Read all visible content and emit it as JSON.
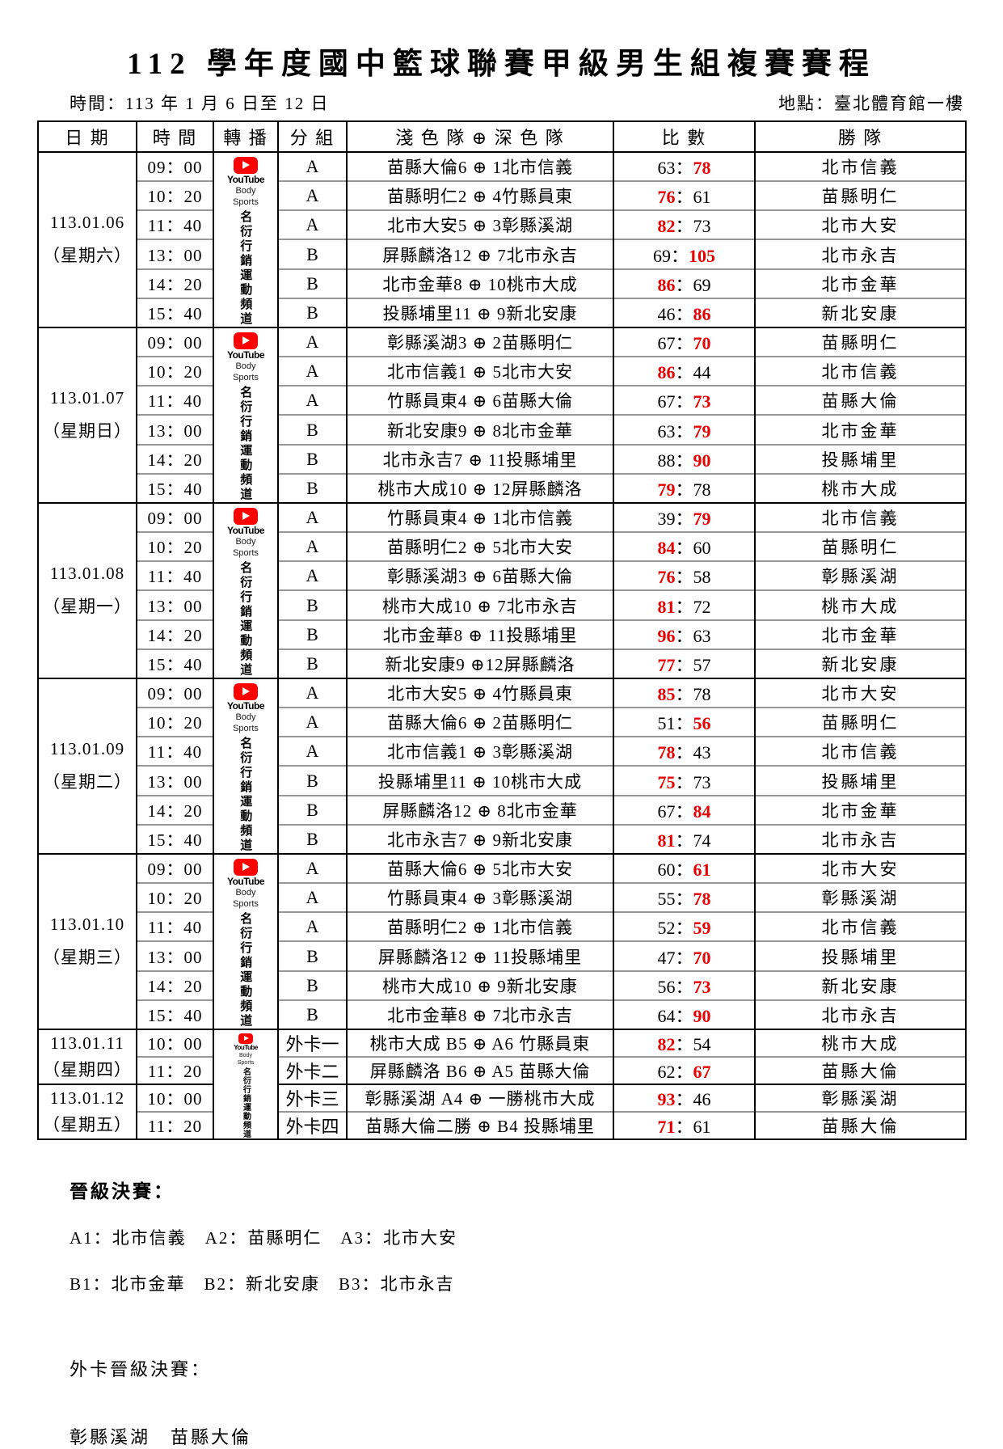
{
  "title": "112 學年度國中籃球聯賽甲級男生組複賽賽程",
  "meta": {
    "time_label": "時間：113 年 1 月 6 日至 12 日",
    "place_label": "地點：臺北體育館一樓"
  },
  "colors": {
    "score_highlight": "#e60000",
    "youtube_red": "#ff0000"
  },
  "table": {
    "headers": [
      "日 期",
      "時 間",
      "轉 播",
      "分 組",
      "淺 色 隊 ⊕ 深 色 隊",
      "比 數",
      "勝 隊"
    ],
    "score_separator": "：",
    "broadcast": {
      "youtube_label": "YouTube",
      "channel_line1": "Body",
      "channel_line2": "Sports",
      "channel_name_vertical": "名衍行銷運動頻道"
    },
    "day_blocks": [
      {
        "date": "113.01.06",
        "weekday": "（星期六）",
        "rows": [
          {
            "time": "09：00",
            "group": "A",
            "match": "苗縣大倫6 ⊕ 1北市信義",
            "score": {
              "left": "63",
              "right": "78",
              "winner": "right"
            },
            "winner_team": "北市信義"
          },
          {
            "time": "10：20",
            "group": "A",
            "match": "苗縣明仁2 ⊕ 4竹縣員東",
            "score": {
              "left": "76",
              "right": "61",
              "winner": "left"
            },
            "winner_team": "苗縣明仁"
          },
          {
            "time": "11：40",
            "group": "A",
            "match": "北市大安5 ⊕ 3彰縣溪湖",
            "score": {
              "left": "82",
              "right": "73",
              "winner": "left"
            },
            "winner_team": "北市大安"
          },
          {
            "time": "13：00",
            "group": "B",
            "match": "屏縣麟洛12 ⊕ 7北市永吉",
            "score": {
              "left": "69",
              "right": "105",
              "winner": "right"
            },
            "winner_team": "北市永吉"
          },
          {
            "time": "14：20",
            "group": "B",
            "match": "北市金華8 ⊕ 10桃市大成",
            "score": {
              "left": "86",
              "right": "69",
              "winner": "left"
            },
            "winner_team": "北市金華"
          },
          {
            "time": "15：40",
            "group": "B",
            "match": "投縣埔里11 ⊕ 9新北安康",
            "score": {
              "left": "46",
              "right": "86",
              "winner": "right"
            },
            "winner_team": "新北安康"
          }
        ]
      },
      {
        "date": "113.01.07",
        "weekday": "（星期日）",
        "rows": [
          {
            "time": "09：00",
            "group": "A",
            "match": "彰縣溪湖3 ⊕ 2苗縣明仁",
            "score": {
              "left": "67",
              "right": "70",
              "winner": "right"
            },
            "winner_team": "苗縣明仁"
          },
          {
            "time": "10：20",
            "group": "A",
            "match": "北市信義1 ⊕ 5北市大安",
            "score": {
              "left": "86",
              "right": "44",
              "winner": "left"
            },
            "winner_team": "北市信義"
          },
          {
            "time": "11：40",
            "group": "A",
            "match": "竹縣員東4 ⊕ 6苗縣大倫",
            "score": {
              "left": "67",
              "right": "73",
              "winner": "right"
            },
            "winner_team": "苗縣大倫"
          },
          {
            "time": "13：00",
            "group": "B",
            "match": "新北安康9 ⊕ 8北市金華",
            "score": {
              "left": "63",
              "right": "79",
              "winner": "right"
            },
            "winner_team": "北市金華"
          },
          {
            "time": "14：20",
            "group": "B",
            "match": "北市永吉7 ⊕ 11投縣埔里",
            "score": {
              "left": "88",
              "right": "90",
              "winner": "right"
            },
            "winner_team": "投縣埔里"
          },
          {
            "time": "15：40",
            "group": "B",
            "match": "桃市大成10 ⊕ 12屏縣麟洛",
            "score": {
              "left": "79",
              "right": "78",
              "winner": "left"
            },
            "winner_team": "桃市大成"
          }
        ]
      },
      {
        "date": "113.01.08",
        "weekday": "（星期一）",
        "rows": [
          {
            "time": "09：00",
            "group": "A",
            "match": "竹縣員東4 ⊕ 1北市信義",
            "score": {
              "left": "39",
              "right": "79",
              "winner": "right"
            },
            "winner_team": "北市信義"
          },
          {
            "time": "10：20",
            "group": "A",
            "match": "苗縣明仁2 ⊕ 5北市大安",
            "score": {
              "left": "84",
              "right": "60",
              "winner": "left"
            },
            "winner_team": "苗縣明仁"
          },
          {
            "time": "11：40",
            "group": "A",
            "match": "彰縣溪湖3 ⊕ 6苗縣大倫",
            "score": {
              "left": "76",
              "right": "58",
              "winner": "left"
            },
            "winner_team": "彰縣溪湖"
          },
          {
            "time": "13：00",
            "group": "B",
            "match": "桃市大成10 ⊕ 7北市永吉",
            "score": {
              "left": "81",
              "right": "72",
              "winner": "left"
            },
            "winner_team": "桃市大成"
          },
          {
            "time": "14：20",
            "group": "B",
            "match": "北市金華8 ⊕ 11投縣埔里",
            "score": {
              "left": "96",
              "right": "63",
              "winner": "left"
            },
            "winner_team": "北市金華"
          },
          {
            "time": "15：40",
            "group": "B",
            "match": "新北安康9 ⊕12屏縣麟洛",
            "score": {
              "left": "77",
              "right": "57",
              "winner": "left"
            },
            "winner_team": "新北安康"
          }
        ]
      },
      {
        "date": "113.01.09",
        "weekday": "（星期二）",
        "rows": [
          {
            "time": "09：00",
            "group": "A",
            "match": "北市大安5 ⊕ 4竹縣員東",
            "score": {
              "left": "85",
              "right": "78",
              "winner": "left"
            },
            "winner_team": "北市大安"
          },
          {
            "time": "10：20",
            "group": "A",
            "match": "苗縣大倫6 ⊕ 2苗縣明仁",
            "score": {
              "left": "51",
              "right": "56",
              "winner": "right"
            },
            "winner_team": "苗縣明仁"
          },
          {
            "time": "11：40",
            "group": "A",
            "match": "北市信義1 ⊕ 3彰縣溪湖",
            "score": {
              "left": "78",
              "right": "43",
              "winner": "left"
            },
            "winner_team": "北市信義"
          },
          {
            "time": "13：00",
            "group": "B",
            "match": "投縣埔里11 ⊕ 10桃市大成",
            "score": {
              "left": "75",
              "right": "73",
              "winner": "left"
            },
            "winner_team": "投縣埔里"
          },
          {
            "time": "14：20",
            "group": "B",
            "match": "屏縣麟洛12 ⊕ 8北市金華",
            "score": {
              "left": "67",
              "right": "84",
              "winner": "right"
            },
            "winner_team": "北市金華"
          },
          {
            "time": "15：40",
            "group": "B",
            "match": "北市永吉7 ⊕ 9新北安康",
            "score": {
              "left": "81",
              "right": "74",
              "winner": "left"
            },
            "winner_team": "北市永吉"
          }
        ]
      },
      {
        "date": "113.01.10",
        "weekday": "（星期三）",
        "rows": [
          {
            "time": "09：00",
            "group": "A",
            "match": "苗縣大倫6 ⊕ 5北市大安",
            "score": {
              "left": "60",
              "right": "61",
              "winner": "right"
            },
            "winner_team": "北市大安"
          },
          {
            "time": "10：20",
            "group": "A",
            "match": "竹縣員東4 ⊕ 3彰縣溪湖",
            "score": {
              "left": "55",
              "right": "78",
              "winner": "right"
            },
            "winner_team": "彰縣溪湖"
          },
          {
            "time": "11：40",
            "group": "A",
            "match": "苗縣明仁2 ⊕ 1北市信義",
            "score": {
              "left": "52",
              "right": "59",
              "winner": "right"
            },
            "winner_team": "北市信義"
          },
          {
            "time": "13：00",
            "group": "B",
            "match": "屏縣麟洛12 ⊕ 11投縣埔里",
            "score": {
              "left": "47",
              "right": "70",
              "winner": "right"
            },
            "winner_team": "投縣埔里"
          },
          {
            "time": "14：20",
            "group": "B",
            "match": "桃市大成10 ⊕ 9新北安康",
            "score": {
              "left": "56",
              "right": "73",
              "winner": "right"
            },
            "winner_team": "新北安康"
          },
          {
            "time": "15：40",
            "group": "B",
            "match": "北市金華8 ⊕ 7北市永吉",
            "score": {
              "left": "64",
              "right": "90",
              "winner": "right"
            },
            "winner_team": "北市永吉"
          }
        ]
      }
    ],
    "wildcard": {
      "blocks": [
        {
          "date": "113.01.11",
          "weekday": "（星期四）",
          "rows": [
            {
              "time": "10：00",
              "group": "外卡一",
              "match": "桃市大成 B5 ⊕ A6 竹縣員東",
              "score": {
                "left": "82",
                "right": "54",
                "winner": "left"
              },
              "winner_team": "桃市大成"
            },
            {
              "time": "11：20",
              "group": "外卡二",
              "match": "屏縣麟洛 B6 ⊕ A5 苗縣大倫",
              "score": {
                "left": "62",
                "right": "67",
                "winner": "right"
              },
              "winner_team": "苗縣大倫"
            }
          ]
        },
        {
          "date": "113.01.12",
          "weekday": "（星期五）",
          "rows": [
            {
              "time": "10：00",
              "group": "外卡三",
              "match": "彰縣溪湖 A4 ⊕ 一勝桃市大成",
              "score": {
                "left": "93",
                "right": "46",
                "winner": "left"
              },
              "winner_team": "彰縣溪湖"
            },
            {
              "time": "11：20",
              "group": "外卡四",
              "match": "苗縣大倫二勝 ⊕ B4 投縣埔里",
              "score": {
                "left": "71",
                "right": "61",
                "winner": "left"
              },
              "winner_team": "苗縣大倫"
            }
          ]
        }
      ]
    }
  },
  "footer": {
    "finals_title": "晉級決賽：",
    "group_a_line": "A1：北市信義　A2：苗縣明仁　A3：北市大安",
    "group_b_line": "B1：北市金華　B2：新北安康　B3：北市永吉",
    "wildcard_title": "外卡晉級決賽：",
    "wildcard_teams": "彰縣溪湖　苗縣大倫"
  }
}
